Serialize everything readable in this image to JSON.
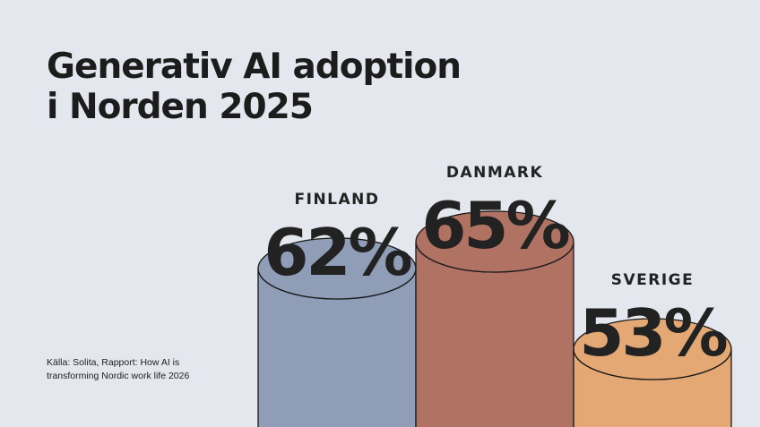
{
  "title_lines": [
    "Generativ AI adoption",
    "i Norden 2025"
  ],
  "source_lines": [
    "Källa: Solita, Rapport: How AI is",
    "transforming Nordic work life 2026"
  ],
  "chart_data": {
    "type": "bar",
    "style": "3d-cylinder",
    "title": "Generativ AI adoption i Norden 2025",
    "categories": [
      "FINLAND",
      "DANMARK",
      "SVERIGE"
    ],
    "values": [
      62,
      65,
      53
    ],
    "data_labels": [
      "62%",
      "65%",
      "53%"
    ],
    "colors": [
      "#8f9db6",
      "#b07262",
      "#e3a874"
    ],
    "unit": "%",
    "grid": false,
    "legend": "none"
  },
  "colors": {
    "background": "#e4e7ee",
    "text": "#222222",
    "outline": "#1a1a1a"
  }
}
